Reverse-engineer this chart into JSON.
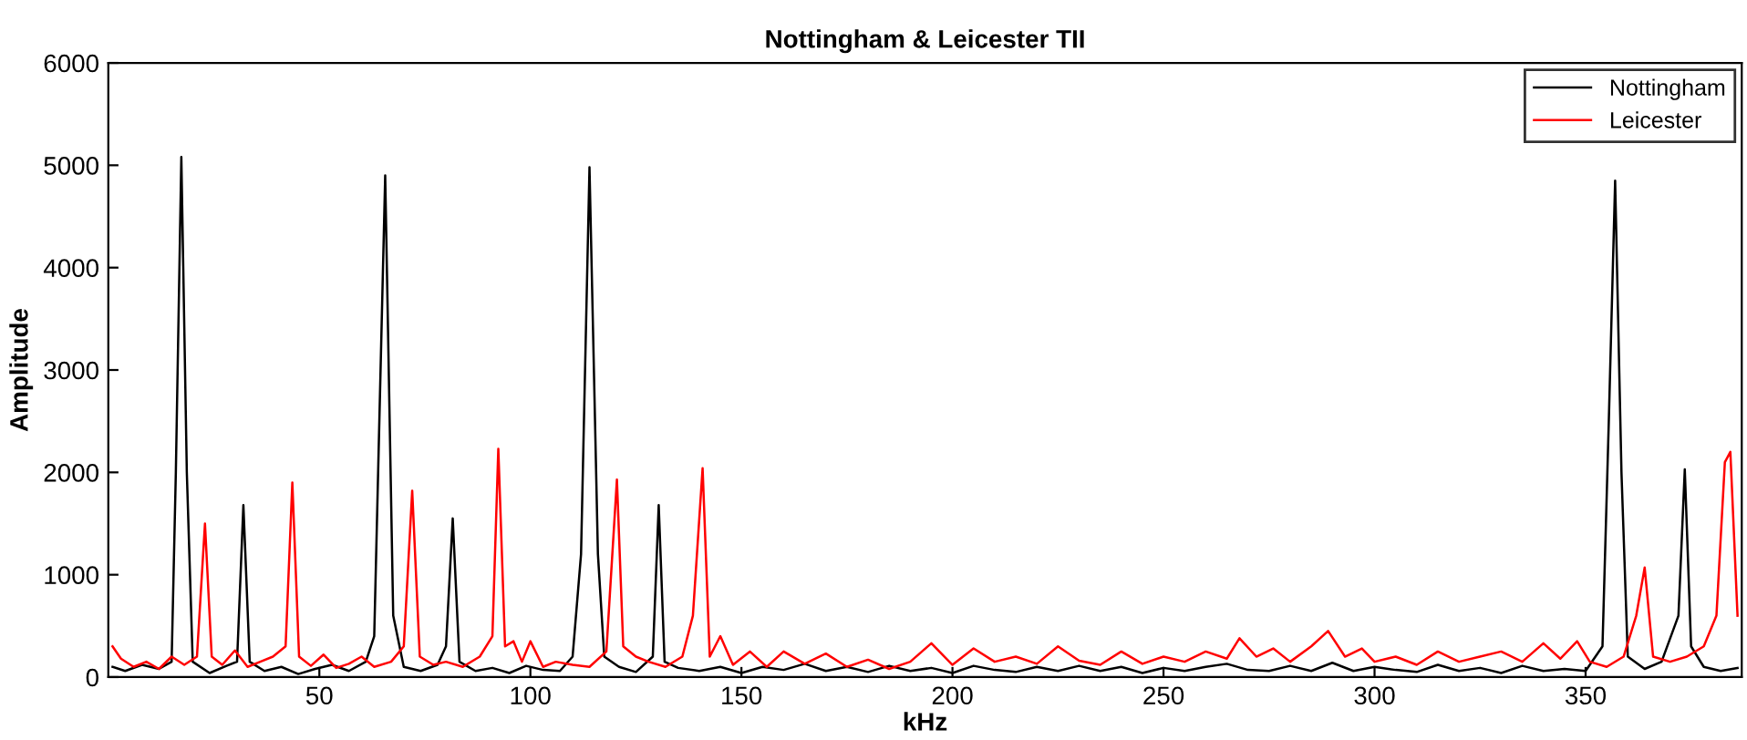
{
  "chart_data": {
    "type": "line",
    "title": "Nottingham & Leicester TII",
    "xlabel": "kHz",
    "ylabel": "Amplitude",
    "xlim": [
      0,
      387
    ],
    "xticks": [
      50,
      100,
      150,
      200,
      250,
      300,
      350
    ],
    "ylim": [
      0,
      6000
    ],
    "yticks": [
      0,
      1000,
      2000,
      3000,
      4000,
      5000,
      6000
    ],
    "grid": false,
    "legend": "top right",
    "marker": "none",
    "line_style": "solid",
    "series": [
      {
        "name": "Nottingham",
        "color": "#000000",
        "x": [
          1,
          4,
          8,
          12,
          15,
          16,
          17.3,
          18.6,
          20,
          24,
          28,
          30.5,
          32,
          33.5,
          37,
          41,
          45,
          49,
          53,
          57,
          61,
          63,
          65.6,
          67.5,
          70,
          74,
          78,
          80,
          81.6,
          83.2,
          87,
          91,
          95,
          99,
          103,
          107,
          110,
          112,
          114,
          116,
          117.5,
          121,
          125,
          129,
          130.4,
          131.8,
          135,
          140,
          145,
          150,
          155,
          160,
          165,
          170,
          175,
          180,
          185,
          190,
          195,
          200,
          205,
          210,
          215,
          220,
          225,
          230,
          235,
          240,
          245,
          250,
          255,
          260,
          265,
          270,
          275,
          280,
          285,
          290,
          295,
          300,
          305,
          310,
          315,
          320,
          325,
          330,
          335,
          340,
          345,
          350,
          354,
          355.5,
          357,
          358.5,
          360,
          364,
          368,
          372,
          373.5,
          375,
          378,
          382,
          386
        ],
        "values": [
          100,
          60,
          120,
          80,
          150,
          2000,
          5080,
          2000,
          150,
          40,
          110,
          150,
          1680,
          150,
          60,
          100,
          30,
          80,
          120,
          60,
          150,
          400,
          4900,
          600,
          100,
          60,
          120,
          300,
          1550,
          150,
          60,
          90,
          40,
          110,
          70,
          60,
          200,
          1200,
          4980,
          1200,
          200,
          100,
          50,
          200,
          1680,
          150,
          90,
          60,
          100,
          40,
          100,
          70,
          130,
          60,
          100,
          50,
          110,
          60,
          90,
          40,
          110,
          70,
          50,
          100,
          60,
          110,
          60,
          100,
          40,
          90,
          60,
          100,
          130,
          70,
          60,
          110,
          60,
          140,
          60,
          100,
          70,
          50,
          120,
          60,
          90,
          40,
          110,
          60,
          80,
          60,
          300,
          2500,
          4850,
          2000,
          200,
          80,
          150,
          600,
          2030,
          300,
          100,
          60,
          90
        ]
      },
      {
        "name": "Leicester",
        "color": "#ff0000",
        "x": [
          1,
          3,
          6,
          9,
          12,
          15,
          18,
          21,
          22.9,
          24.5,
          27,
          30,
          33,
          36,
          39,
          42,
          43.6,
          45.2,
          48,
          51,
          54,
          57,
          60,
          63,
          67,
          70,
          72,
          73.8,
          77,
          80,
          84,
          88,
          91,
          92.4,
          94,
          96,
          98,
          100,
          103,
          106,
          110,
          114,
          118,
          120.5,
          122,
          125,
          128,
          132,
          136,
          138.5,
          140.8,
          142.5,
          145,
          148,
          152,
          156,
          160,
          165,
          170,
          175,
          180,
          185,
          190,
          195,
          200,
          205,
          210,
          215,
          220,
          225,
          230,
          235,
          240,
          245,
          250,
          255,
          260,
          265,
          268,
          272,
          276,
          280,
          285,
          289,
          293,
          297,
          300,
          305,
          310,
          315,
          320,
          325,
          330,
          335,
          340,
          344,
          348,
          351,
          355,
          359,
          362,
          364,
          366,
          370,
          374,
          378,
          381,
          383,
          384.3,
          386
        ],
        "values": [
          300,
          180,
          100,
          150,
          80,
          200,
          120,
          200,
          1500,
          200,
          120,
          260,
          100,
          150,
          200,
          300,
          1900,
          200,
          110,
          220,
          90,
          130,
          200,
          100,
          150,
          300,
          1820,
          200,
          120,
          150,
          100,
          200,
          400,
          2230,
          300,
          350,
          150,
          350,
          100,
          150,
          120,
          100,
          250,
          1930,
          300,
          200,
          150,
          100,
          200,
          600,
          2040,
          200,
          400,
          120,
          250,
          100,
          250,
          130,
          230,
          100,
          170,
          80,
          150,
          330,
          120,
          280,
          150,
          200,
          130,
          300,
          160,
          120,
          250,
          130,
          200,
          150,
          250,
          180,
          380,
          200,
          280,
          150,
          300,
          450,
          200,
          280,
          150,
          200,
          120,
          250,
          150,
          200,
          250,
          150,
          330,
          180,
          350,
          150,
          100,
          200,
          600,
          1070,
          200,
          150,
          200,
          300,
          600,
          2100,
          2200,
          600
        ]
      }
    ]
  }
}
